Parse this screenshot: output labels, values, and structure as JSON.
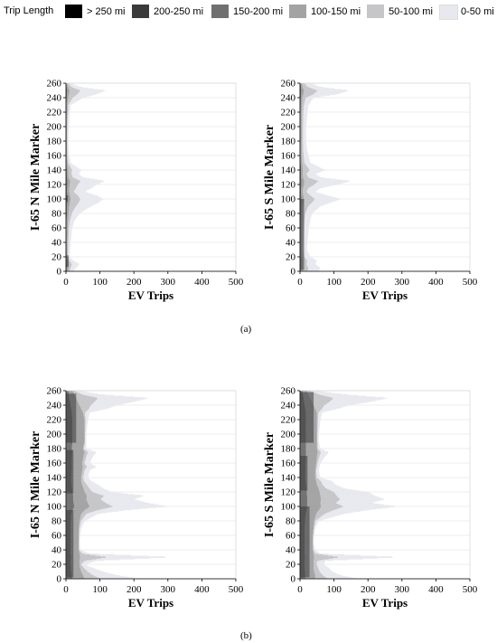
{
  "legend": {
    "title": "Trip Length",
    "items": [
      {
        "label": "> 250 mi",
        "color": "#000000"
      },
      {
        "label": "200-250 mi",
        "color": "#3a3a3a"
      },
      {
        "label": "150-200 mi",
        "color": "#707070"
      },
      {
        "label": "100-150 mi",
        "color": "#a3a3a3"
      },
      {
        "label": "50-100 mi",
        "color": "#c6c6c9"
      },
      {
        "label": "0-50 mi",
        "color": "#e8e8ef"
      }
    ]
  },
  "captions": {
    "a": "(a)",
    "b": "(b)"
  },
  "chart_data": [
    {
      "panel": "a-left",
      "type": "bar",
      "orientation": "horizontal",
      "stacked": true,
      "xlabel": "EV Trips",
      "ylabel": "I-65 N Mile Marker",
      "xlim": [
        0,
        500
      ],
      "ylim": [
        0,
        260
      ],
      "xticks": [
        0,
        100,
        200,
        300,
        400,
        500
      ],
      "yticks": [
        0,
        20,
        40,
        60,
        80,
        100,
        120,
        140,
        160,
        180,
        200,
        220,
        240,
        260
      ],
      "grid": "horizontal",
      "profile": [
        [
          0,
          20,
          7
        ],
        [
          5,
          30,
          7
        ],
        [
          10,
          40,
          8
        ],
        [
          15,
          22,
          6
        ],
        [
          20,
          10,
          4
        ],
        [
          30,
          12,
          4
        ],
        [
          40,
          14,
          4
        ],
        [
          50,
          16,
          5
        ],
        [
          60,
          18,
          5
        ],
        [
          70,
          25,
          6
        ],
        [
          80,
          40,
          8
        ],
        [
          85,
          55,
          9
        ],
        [
          90,
          75,
          10
        ],
        [
          95,
          95,
          12
        ],
        [
          100,
          110,
          14
        ],
        [
          105,
          90,
          12
        ],
        [
          110,
          55,
          9
        ],
        [
          115,
          75,
          10
        ],
        [
          120,
          90,
          11
        ],
        [
          125,
          115,
          13
        ],
        [
          130,
          50,
          8
        ],
        [
          135,
          38,
          7
        ],
        [
          140,
          45,
          7
        ],
        [
          150,
          14,
          4
        ],
        [
          160,
          10,
          3
        ],
        [
          170,
          8,
          3
        ],
        [
          180,
          7,
          3
        ],
        [
          190,
          8,
          3
        ],
        [
          200,
          9,
          3
        ],
        [
          210,
          10,
          3
        ],
        [
          220,
          12,
          4
        ],
        [
          230,
          14,
          4
        ],
        [
          240,
          50,
          7
        ],
        [
          245,
          90,
          9
        ],
        [
          250,
          118,
          11
        ],
        [
          255,
          40,
          6
        ],
        [
          260,
          15,
          4
        ]
      ],
      "blocks": [
        [
          6,
          22,
          8
        ],
        [
          96,
          105,
          6
        ]
      ]
    },
    {
      "panel": "a-right",
      "type": "bar",
      "orientation": "horizontal",
      "stacked": true,
      "xlabel": "EV Trips",
      "ylabel": "I-65 S Mile Marker",
      "xlim": [
        0,
        500
      ],
      "ylim": [
        0,
        260
      ],
      "xticks": [
        0,
        100,
        200,
        300,
        400,
        500
      ],
      "yticks": [
        0,
        20,
        40,
        60,
        80,
        100,
        120,
        140,
        160,
        180,
        200,
        220,
        240,
        260
      ],
      "grid": "horizontal",
      "profile": [
        [
          0,
          55,
          9
        ],
        [
          5,
          60,
          9
        ],
        [
          10,
          45,
          8
        ],
        [
          15,
          50,
          9
        ],
        [
          20,
          30,
          6
        ],
        [
          30,
          20,
          5
        ],
        [
          40,
          22,
          5
        ],
        [
          50,
          24,
          6
        ],
        [
          60,
          26,
          6
        ],
        [
          70,
          30,
          6
        ],
        [
          80,
          35,
          7
        ],
        [
          90,
          60,
          9
        ],
        [
          95,
          90,
          11
        ],
        [
          100,
          120,
          12
        ],
        [
          105,
          80,
          10
        ],
        [
          110,
          45,
          8
        ],
        [
          115,
          60,
          9
        ],
        [
          120,
          110,
          12
        ],
        [
          125,
          150,
          13
        ],
        [
          130,
          60,
          9
        ],
        [
          135,
          45,
          8
        ],
        [
          140,
          75,
          9
        ],
        [
          150,
          30,
          6
        ],
        [
          160,
          25,
          5
        ],
        [
          170,
          20,
          5
        ],
        [
          180,
          18,
          5
        ],
        [
          190,
          18,
          5
        ],
        [
          200,
          18,
          5
        ],
        [
          210,
          20,
          5
        ],
        [
          220,
          22,
          5
        ],
        [
          230,
          25,
          6
        ],
        [
          240,
          40,
          7
        ],
        [
          245,
          110,
          10
        ],
        [
          250,
          145,
          12
        ],
        [
          255,
          60,
          8
        ],
        [
          260,
          30,
          6
        ]
      ],
      "blocks": [
        [
          2,
          100,
          12
        ]
      ]
    },
    {
      "panel": "b-left",
      "type": "bar",
      "orientation": "horizontal",
      "stacked": true,
      "xlabel": "EV Trips",
      "ylabel": "I-65 N Mile Marker",
      "xlim": [
        0,
        500
      ],
      "ylim": [
        0,
        260
      ],
      "xticks": [
        0,
        100,
        200,
        300,
        400,
        500
      ],
      "yticks": [
        0,
        20,
        40,
        60,
        80,
        100,
        120,
        140,
        160,
        180,
        200,
        220,
        240,
        260
      ],
      "grid": "horizontal",
      "profile": [
        [
          0,
          220,
          55
        ],
        [
          5,
          150,
          50
        ],
        [
          10,
          110,
          45
        ],
        [
          15,
          80,
          42
        ],
        [
          20,
          55,
          40
        ],
        [
          25,
          90,
          40
        ],
        [
          30,
          315,
          42
        ],
        [
          35,
          70,
          40
        ],
        [
          40,
          42,
          38
        ],
        [
          50,
          40,
          38
        ],
        [
          60,
          42,
          38
        ],
        [
          70,
          45,
          38
        ],
        [
          80,
          55,
          40
        ],
        [
          90,
          95,
          45
        ],
        [
          95,
          180,
          55
        ],
        [
          100,
          300,
          70
        ],
        [
          105,
          240,
          65
        ],
        [
          110,
          200,
          60
        ],
        [
          115,
          230,
          62
        ],
        [
          120,
          135,
          55
        ],
        [
          125,
          110,
          52
        ],
        [
          130,
          95,
          48
        ],
        [
          135,
          75,
          45
        ],
        [
          140,
          65,
          45
        ],
        [
          150,
          70,
          48
        ],
        [
          155,
          90,
          50
        ],
        [
          160,
          70,
          48
        ],
        [
          170,
          80,
          52
        ],
        [
          175,
          90,
          55
        ],
        [
          180,
          60,
          50
        ],
        [
          190,
          60,
          55
        ],
        [
          200,
          60,
          55
        ],
        [
          210,
          62,
          55
        ],
        [
          220,
          65,
          55
        ],
        [
          230,
          70,
          50
        ],
        [
          235,
          120,
          45
        ],
        [
          240,
          150,
          40
        ],
        [
          245,
          200,
          35
        ],
        [
          250,
          245,
          30
        ],
        [
          255,
          100,
          25
        ],
        [
          260,
          40,
          20
        ]
      ],
      "blocks": [
        [
          2,
          95,
          22
        ],
        [
          118,
          178,
          22
        ],
        [
          188,
          256,
          30
        ]
      ]
    },
    {
      "panel": "b-right",
      "type": "bar",
      "orientation": "horizontal",
      "stacked": true,
      "xlabel": "EV Trips",
      "ylabel": "I-65 S Mile Marker",
      "xlim": [
        0,
        500
      ],
      "ylim": [
        0,
        260
      ],
      "xticks": [
        0,
        100,
        200,
        300,
        400,
        500
      ],
      "yticks": [
        0,
        20,
        40,
        60,
        80,
        100,
        120,
        140,
        160,
        180,
        200,
        220,
        240,
        260
      ],
      "grid": "horizontal",
      "profile": [
        [
          0,
          170,
          45
        ],
        [
          5,
          120,
          45
        ],
        [
          10,
          95,
          42
        ],
        [
          15,
          85,
          40
        ],
        [
          20,
          70,
          40
        ],
        [
          25,
          75,
          40
        ],
        [
          30,
          295,
          42
        ],
        [
          35,
          60,
          40
        ],
        [
          40,
          45,
          38
        ],
        [
          50,
          40,
          38
        ],
        [
          60,
          42,
          38
        ],
        [
          70,
          45,
          40
        ],
        [
          80,
          55,
          42
        ],
        [
          90,
          130,
          48
        ],
        [
          95,
          200,
          55
        ],
        [
          100,
          285,
          62
        ],
        [
          105,
          210,
          60
        ],
        [
          110,
          250,
          62
        ],
        [
          115,
          220,
          60
        ],
        [
          120,
          200,
          58
        ],
        [
          125,
          130,
          55
        ],
        [
          130,
          105,
          50
        ],
        [
          135,
          95,
          48
        ],
        [
          140,
          60,
          45
        ],
        [
          150,
          55,
          45
        ],
        [
          160,
          60,
          48
        ],
        [
          170,
          75,
          50
        ],
        [
          175,
          85,
          52
        ],
        [
          180,
          60,
          50
        ],
        [
          190,
          55,
          50
        ],
        [
          200,
          55,
          50
        ],
        [
          210,
          58,
          50
        ],
        [
          220,
          60,
          50
        ],
        [
          230,
          65,
          50
        ],
        [
          235,
          110,
          45
        ],
        [
          240,
          145,
          40
        ],
        [
          245,
          210,
          35
        ],
        [
          250,
          260,
          30
        ],
        [
          255,
          130,
          25
        ],
        [
          260,
          50,
          20
        ]
      ],
      "blocks": [
        [
          2,
          100,
          28
        ],
        [
          122,
          170,
          22
        ],
        [
          188,
          258,
          40
        ]
      ]
    }
  ]
}
